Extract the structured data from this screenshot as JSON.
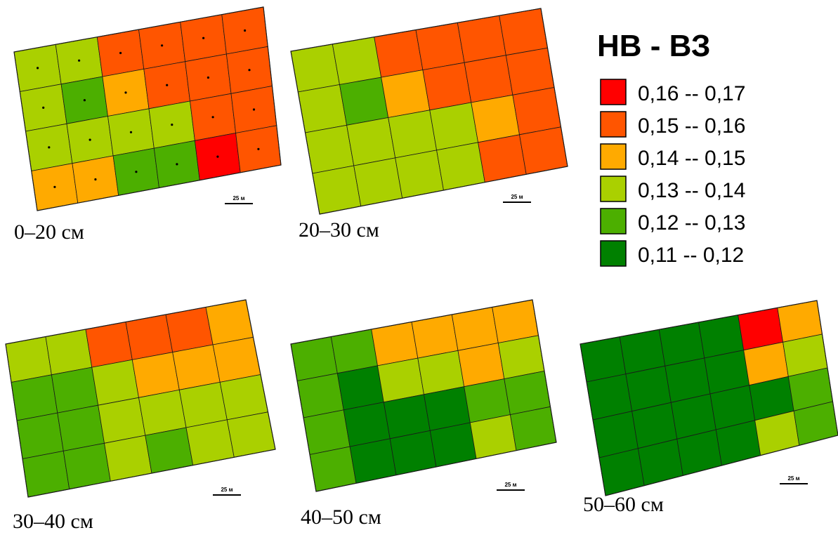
{
  "legend": {
    "title": "НВ - ВЗ",
    "classes": [
      {
        "key": "c6",
        "label": "0,16 -- 0,17",
        "color": "#ff0000"
      },
      {
        "key": "c5",
        "label": "0,15 -- 0,16",
        "color": "#ff5500"
      },
      {
        "key": "c4",
        "label": "0,14 -- 0,15",
        "color": "#ffaa00"
      },
      {
        "key": "c3",
        "label": "0,13 -- 0,14",
        "color": "#aad000"
      },
      {
        "key": "c2",
        "label": "0,12 -- 0,13",
        "color": "#4caf00"
      },
      {
        "key": "c1",
        "label": "0,11 -- 0,12",
        "color": "#008000"
      }
    ]
  },
  "scale_label": "25 м",
  "maps": [
    {
      "caption": "0–20 см",
      "sample_points": true,
      "grid": [
        [
          "c3",
          "c3",
          "c5",
          "c5",
          "c5",
          "c5"
        ],
        [
          "c3",
          "c2",
          "c4",
          "c5",
          "c5",
          "c5"
        ],
        [
          "c3",
          "c3",
          "c3",
          "c3",
          "c5",
          "c5"
        ],
        [
          "c4",
          "c4",
          "c2",
          "c2",
          "c6",
          "c5"
        ]
      ]
    },
    {
      "caption": "20–30 см",
      "sample_points": false,
      "grid": [
        [
          "c3",
          "c3",
          "c5",
          "c5",
          "c5",
          "c5"
        ],
        [
          "c3",
          "c2",
          "c4",
          "c5",
          "c5",
          "c5"
        ],
        [
          "c3",
          "c3",
          "c3",
          "c3",
          "c4",
          "c5"
        ],
        [
          "c3",
          "c3",
          "c3",
          "c3",
          "c5",
          "c5"
        ]
      ]
    },
    {
      "caption": "30–40 см",
      "sample_points": false,
      "grid": [
        [
          "c3",
          "c3",
          "c5",
          "c5",
          "c5",
          "c4"
        ],
        [
          "c2",
          "c2",
          "c3",
          "c4",
          "c4",
          "c4"
        ],
        [
          "c2",
          "c2",
          "c3",
          "c3",
          "c3",
          "c3"
        ],
        [
          "c2",
          "c2",
          "c3",
          "c2",
          "c3",
          "c3"
        ]
      ]
    },
    {
      "caption": "40–50 см",
      "sample_points": false,
      "grid": [
        [
          "c2",
          "c2",
          "c4",
          "c4",
          "c4",
          "c4"
        ],
        [
          "c2",
          "c1",
          "c3",
          "c3",
          "c4",
          "c3"
        ],
        [
          "c2",
          "c1",
          "c1",
          "c1",
          "c2",
          "c2"
        ],
        [
          "c2",
          "c1",
          "c1",
          "c1",
          "c3",
          "c2"
        ]
      ]
    },
    {
      "caption": "50–60 см",
      "sample_points": false,
      "grid": [
        [
          "c1",
          "c1",
          "c1",
          "c1",
          "c6",
          "c4"
        ],
        [
          "c1",
          "c1",
          "c1",
          "c1",
          "c4",
          "c3"
        ],
        [
          "c1",
          "c1",
          "c1",
          "c1",
          "c1",
          "c2"
        ],
        [
          "c1",
          "c1",
          "c1",
          "c1",
          "c3",
          "c2"
        ]
      ]
    }
  ]
}
